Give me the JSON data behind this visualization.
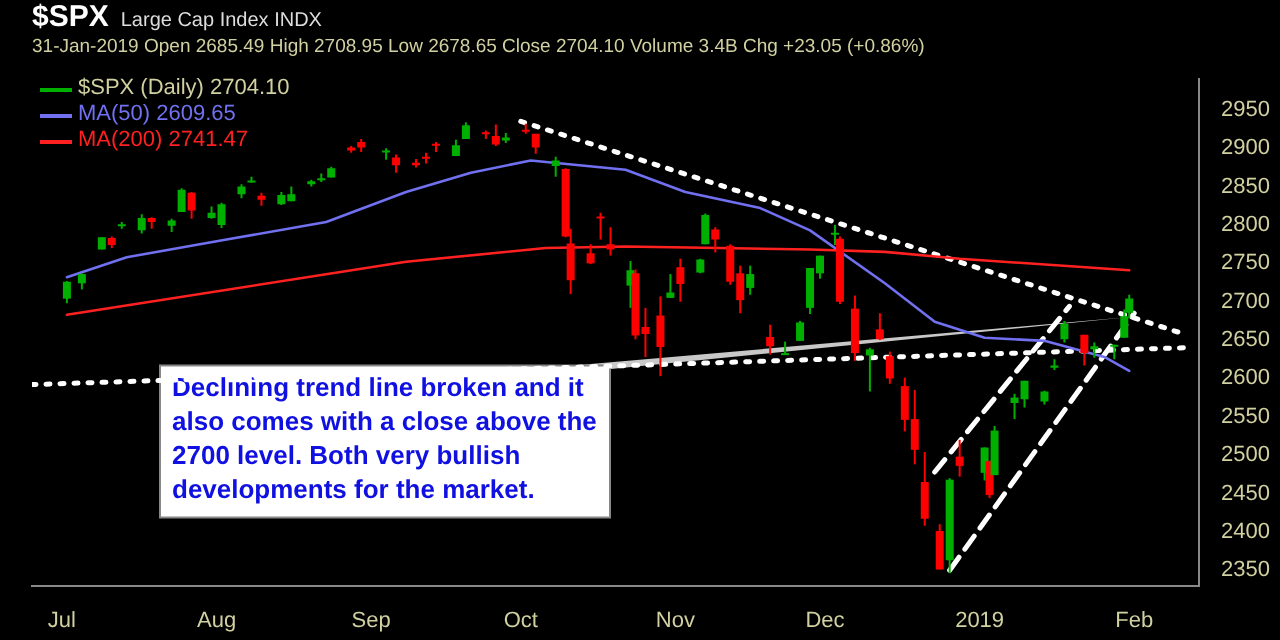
{
  "chart_data": {
    "type": "candlestick",
    "title": "$SPX",
    "subtitle": "Large Cap Index INDX",
    "annotations": [
      "31-Jan-2019 Open 2685.49 High 2708.95 Low 2678.65 Close 2704.10 Volume 3.4B Chg +23.05 (+0.86%)",
      {
        "text": "Declining trend line broken and it also comes with a close above the 2700 level. Both very bullish developments for the market.",
        "x": "2019-01-31",
        "y": 2680
      }
    ],
    "xlim": [
      "2018-06-25",
      "2019-02-14"
    ],
    "xticks": [
      {
        "value": "2018-07-01",
        "label": "Jul"
      },
      {
        "value": "2018-08-01",
        "label": "Aug"
      },
      {
        "value": "2018-09-01",
        "label": "Sep"
      },
      {
        "value": "2018-10-01",
        "label": "Oct"
      },
      {
        "value": "2018-11-01",
        "label": "Nov"
      },
      {
        "value": "2018-12-01",
        "label": "Dec"
      },
      {
        "value": "2019-01-01",
        "label": "2019"
      },
      {
        "value": "2019-02-01",
        "label": "Feb"
      }
    ],
    "ylim": [
      2330,
      2990
    ],
    "yticks": [
      2350,
      2400,
      2450,
      2500,
      2550,
      2600,
      2650,
      2700,
      2750,
      2800,
      2850,
      2900,
      2950
    ],
    "grid": false,
    "legend": "top left",
    "series": [
      {
        "name": "$SPX (Daily) 2704.10",
        "color": "#00b000",
        "x": [
          "2018-07-02",
          "2018-07-05",
          "2018-07-09",
          "2018-07-11",
          "2018-07-13",
          "2018-07-17",
          "2018-07-19",
          "2018-07-23",
          "2018-07-25",
          "2018-07-27",
          "2018-07-31",
          "2018-08-02",
          "2018-08-06",
          "2018-08-08",
          "2018-08-10",
          "2018-08-14",
          "2018-08-16",
          "2018-08-20",
          "2018-08-22",
          "2018-08-24",
          "2018-08-28",
          "2018-08-30",
          "2018-09-04",
          "2018-09-06",
          "2018-09-10",
          "2018-09-12",
          "2018-09-14",
          "2018-09-18",
          "2018-09-20",
          "2018-09-24",
          "2018-09-26",
          "2018-09-28",
          "2018-10-02",
          "2018-10-04",
          "2018-10-08",
          "2018-10-10",
          "2018-10-11",
          "2018-10-15",
          "2018-10-17",
          "2018-10-19",
          "2018-10-23",
          "2018-10-24",
          "2018-10-26",
          "2018-10-29",
          "2018-10-31",
          "2018-11-02",
          "2018-11-06",
          "2018-11-07",
          "2018-11-09",
          "2018-11-12",
          "2018-11-14",
          "2018-11-16",
          "2018-11-20",
          "2018-11-23",
          "2018-11-26",
          "2018-11-28",
          "2018-11-30",
          "2018-12-03",
          "2018-12-04",
          "2018-12-07",
          "2018-12-10",
          "2018-12-12",
          "2018-12-14",
          "2018-12-17",
          "2018-12-19",
          "2018-12-21",
          "2018-12-24",
          "2018-12-26",
          "2018-12-28",
          "2019-01-02",
          "2019-01-03",
          "2019-01-04",
          "2019-01-08",
          "2019-01-10",
          "2019-01-14",
          "2019-01-16",
          "2019-01-18",
          "2019-01-22",
          "2019-01-24",
          "2019-01-28",
          "2019-01-30",
          "2019-01-31"
        ],
        "ohlc": [
          [
            2704,
            2727,
            2698,
            2726
          ],
          [
            2724,
            2737,
            2716,
            2736
          ],
          [
            2768,
            2784,
            2768,
            2784
          ],
          [
            2783,
            2785,
            2770,
            2774
          ],
          [
            2800,
            2804,
            2795,
            2801
          ],
          [
            2793,
            2814,
            2789,
            2809
          ],
          [
            2809,
            2810,
            2795,
            2804
          ],
          [
            2799,
            2808,
            2791,
            2806
          ],
          [
            2817,
            2848,
            2817,
            2846
          ],
          [
            2842,
            2843,
            2808,
            2819
          ],
          [
            2809,
            2824,
            2808,
            2816
          ],
          [
            2800,
            2829,
            2796,
            2827
          ],
          [
            2840,
            2853,
            2835,
            2850
          ],
          [
            2856,
            2863,
            2855,
            2858
          ],
          [
            2838,
            2842,
            2825,
            2833
          ],
          [
            2827,
            2843,
            2826,
            2839
          ],
          [
            2831,
            2850,
            2831,
            2840
          ],
          [
            2853,
            2859,
            2850,
            2857
          ],
          [
            2860,
            2867,
            2856,
            2861
          ],
          [
            2862,
            2876,
            2862,
            2874
          ],
          [
            2901,
            2903,
            2894,
            2897
          ],
          [
            2908,
            2912,
            2895,
            2901
          ],
          [
            2896,
            2900,
            2885,
            2897
          ],
          [
            2888,
            2892,
            2868,
            2878
          ],
          [
            2881,
            2886,
            2875,
            2878
          ],
          [
            2889,
            2894,
            2880,
            2888
          ],
          [
            2906,
            2908,
            2895,
            2905
          ],
          [
            2890,
            2911,
            2890,
            2904
          ],
          [
            2912,
            2934,
            2912,
            2930
          ],
          [
            2921,
            2923,
            2912,
            2919
          ],
          [
            2916,
            2931,
            2903,
            2905
          ],
          [
            2910,
            2920,
            2907,
            2914
          ],
          [
            2924,
            2932,
            2919,
            2923
          ],
          [
            2919,
            2919,
            2893,
            2901
          ],
          [
            2877,
            2889,
            2863,
            2884
          ],
          [
            2873,
            2874,
            2784,
            2785
          ],
          [
            2776,
            2795,
            2710,
            2728
          ],
          [
            2763,
            2775,
            2749,
            2750
          ],
          [
            2811,
            2816,
            2781,
            2809
          ],
          [
            2775,
            2797,
            2760,
            2768
          ],
          [
            2721,
            2753,
            2692,
            2741
          ],
          [
            2737,
            2742,
            2651,
            2656
          ],
          [
            2667,
            2692,
            2628,
            2658
          ],
          [
            2682,
            2707,
            2603,
            2641
          ],
          [
            2705,
            2736,
            2705,
            2712
          ],
          [
            2745,
            2756,
            2700,
            2723
          ],
          [
            2738,
            2756,
            2737,
            2755
          ],
          [
            2775,
            2815,
            2775,
            2813
          ],
          [
            2794,
            2797,
            2764,
            2781
          ],
          [
            2773,
            2775,
            2722,
            2726
          ],
          [
            2737,
            2747,
            2685,
            2702
          ],
          [
            2718,
            2747,
            2709,
            2736
          ],
          [
            2654,
            2670,
            2631,
            2642
          ],
          [
            2633,
            2648,
            2631,
            2633
          ],
          [
            2649,
            2675,
            2649,
            2673
          ],
          [
            2692,
            2744,
            2684,
            2744
          ],
          [
            2737,
            2760,
            2730,
            2760
          ],
          [
            2790,
            2800,
            2774,
            2790
          ],
          [
            2782,
            2785,
            2697,
            2700
          ],
          [
            2691,
            2708,
            2623,
            2633
          ],
          [
            2630,
            2640,
            2583,
            2638
          ],
          [
            2664,
            2685,
            2650,
            2651
          ],
          [
            2629,
            2635,
            2593,
            2600
          ],
          [
            2590,
            2601,
            2531,
            2546
          ],
          [
            2547,
            2585,
            2488,
            2507
          ],
          [
            2465,
            2504,
            2408,
            2417
          ],
          [
            2401,
            2410,
            2351,
            2351
          ],
          [
            2363,
            2470,
            2346,
            2468
          ],
          [
            2498,
            2520,
            2472,
            2486
          ],
          [
            2477,
            2510,
            2467,
            2510
          ],
          [
            2492,
            2493,
            2444,
            2448
          ],
          [
            2474,
            2538,
            2474,
            2532
          ],
          [
            2568,
            2580,
            2547,
            2575
          ],
          [
            2573,
            2597,
            2562,
            2597
          ],
          [
            2570,
            2584,
            2566,
            2583
          ],
          [
            2614,
            2625,
            2611,
            2617
          ],
          [
            2651,
            2675,
            2647,
            2671
          ],
          [
            2657,
            2657,
            2617,
            2633
          ],
          [
            2638,
            2647,
            2627,
            2642
          ],
          [
            2644,
            2644,
            2625,
            2644
          ],
          [
            2653,
            2690,
            2653,
            2681
          ],
          [
            2685.49,
            2708.95,
            2678.65,
            2704.1
          ]
        ],
        "colors": [
          "#00b000",
          "#00b000",
          "#00b000",
          "#ff0000",
          "#00b000",
          "#00b000",
          "#ff0000",
          "#00b000",
          "#00b000",
          "#ff0000",
          "#00b000",
          "#00b000",
          "#00b000",
          "#00b000",
          "#ff0000",
          "#00b000",
          "#00b000",
          "#00b000",
          "#00b000",
          "#00b000",
          "#ff0000",
          "#ff0000",
          "#00b000",
          "#ff0000",
          "#ff0000",
          "#ff0000",
          "#ff0000",
          "#00b000",
          "#00b000",
          "#ff0000",
          "#ff0000",
          "#00b000",
          "#ff0000",
          "#ff0000",
          "#00b000",
          "#ff0000",
          "#ff0000",
          "#ff0000",
          "#ff0000",
          "#ff0000",
          "#00b000",
          "#ff0000",
          "#ff0000",
          "#ff0000",
          "#00b000",
          "#ff0000",
          "#00b000",
          "#00b000",
          "#ff0000",
          "#ff0000",
          "#ff0000",
          "#00b000",
          "#ff0000",
          "#00b000",
          "#00b000",
          "#00b000",
          "#00b000",
          "#00b000",
          "#ff0000",
          "#ff0000",
          "#00b000",
          "#ff0000",
          "#ff0000",
          "#ff0000",
          "#ff0000",
          "#ff0000",
          "#ff0000",
          "#00b000",
          "#ff0000",
          "#00b000",
          "#ff0000",
          "#00b000",
          "#00b000",
          "#00b000",
          "#00b000",
          "#00b000",
          "#00b000",
          "#ff0000",
          "#00b000",
          "#00b000",
          "#00b000",
          "#00b000"
        ]
      },
      {
        "type": "line",
        "name": "MA(50) 2609.65",
        "color": "#7070f0",
        "x": [
          "2018-07-02",
          "2018-07-14",
          "2018-08-03",
          "2018-08-23",
          "2018-09-08",
          "2018-09-21",
          "2018-10-03",
          "2018-10-22",
          "2018-11-03",
          "2018-11-18",
          "2018-11-28",
          "2018-12-13",
          "2018-12-23",
          "2019-01-02",
          "2019-01-14",
          "2019-01-26",
          "2019-01-31"
        ],
        "values": [
          2732,
          2758,
          2781,
          2804,
          2843,
          2868,
          2884,
          2872,
          2843,
          2822,
          2793,
          2724,
          2674,
          2653,
          2649,
          2628,
          2610
        ]
      },
      {
        "type": "line",
        "name": "MA(200) 2741.47",
        "color": "#ff2020",
        "x": [
          "2018-07-02",
          "2018-09-08",
          "2018-10-06",
          "2018-10-22",
          "2018-11-28",
          "2018-12-13",
          "2018-12-28",
          "2019-01-31"
        ],
        "values": [
          2683,
          2752,
          2770,
          2772,
          2768,
          2765,
          2756,
          2741
        ]
      },
      {
        "type": "line",
        "color": "#ffffff",
        "line_style": "dotted",
        "x": [
          "2018-10-01",
          "2019-02-10"
        ],
        "values": [
          2935,
          2660
        ]
      },
      {
        "type": "line",
        "color": "#ffffff",
        "line_style": "dotted",
        "x": [
          "2018-06-25",
          "2019-02-11"
        ],
        "values": [
          2592,
          2640
        ]
      },
      {
        "type": "line",
        "color": "#ffffff",
        "line_style": "dashed",
        "x": [
          "2018-12-26",
          "2019-02-01"
        ],
        "values": [
          2350,
          2685
        ]
      },
      {
        "type": "line",
        "color": "#ffffff",
        "line_style": "dashed",
        "x": [
          "2018-12-23",
          "2019-01-19"
        ],
        "values": [
          2478,
          2694
        ]
      }
    ]
  }
}
